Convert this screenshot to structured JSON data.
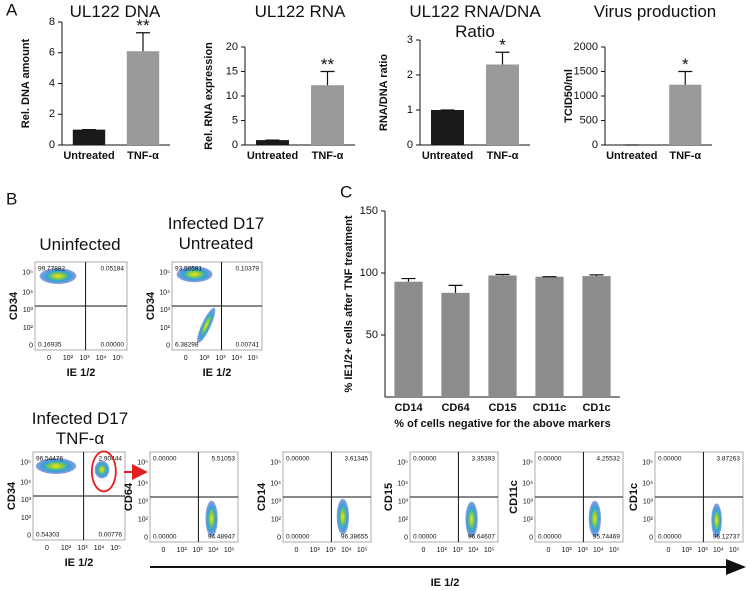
{
  "panel_labels": [
    "A",
    "B",
    "C"
  ],
  "chart_data": [
    {
      "type": "bar",
      "title": "UL122 DNA",
      "y_label": "Rel. DNA amount",
      "categories": [
        "Untreated",
        "TNF-α"
      ],
      "values": [
        1,
        6.1
      ],
      "errors": [
        0,
        1.2
      ],
      "colors": [
        "#1a1a1a",
        "#9a9a9a"
      ],
      "ylim": [
        0,
        8
      ],
      "yticks": [
        0,
        2,
        4,
        6,
        8
      ],
      "significance": [
        null,
        "**"
      ]
    },
    {
      "type": "bar",
      "title": "UL122 RNA",
      "y_label": "Rel. RNA expression",
      "categories": [
        "Untreated",
        "TNF-α"
      ],
      "values": [
        1,
        12.2
      ],
      "errors": [
        0,
        2.8
      ],
      "colors": [
        "#1a1a1a",
        "#9a9a9a"
      ],
      "ylim": [
        0,
        20
      ],
      "yticks": [
        0,
        5,
        10,
        15,
        20
      ],
      "significance": [
        null,
        "**"
      ]
    },
    {
      "type": "bar",
      "title": "UL122 RNA/DNA Ratio",
      "y_label": "RNA/DNA ratio",
      "categories": [
        "Untreated",
        "TNF-α"
      ],
      "values": [
        1,
        2.3
      ],
      "errors": [
        0,
        0.35
      ],
      "colors": [
        "#1a1a1a",
        "#9a9a9a"
      ],
      "ylim": [
        0,
        3
      ],
      "yticks": [
        0,
        1,
        2,
        3
      ],
      "significance": [
        null,
        "*"
      ]
    },
    {
      "type": "bar",
      "title": "Virus production",
      "y_label": "TCID50/ml",
      "categories": [
        "Untreated",
        "TNF-α"
      ],
      "values": [
        0,
        1230
      ],
      "errors": [
        0,
        270
      ],
      "colors": [
        "#1a1a1a",
        "#9a9a9a"
      ],
      "ylim": [
        0,
        2000
      ],
      "yticks": [
        0,
        500,
        1000,
        1500,
        2000
      ],
      "significance": [
        null,
        "*"
      ]
    },
    {
      "type": "bar",
      "y_label": "% IE1/2+ cells after TNF treatment",
      "x_label": "% of cells negative for the above markers",
      "categories": [
        "CD14",
        "CD64",
        "CD15",
        "CD11c",
        "CD1c"
      ],
      "values": [
        93,
        84,
        98,
        97,
        97.5
      ],
      "errors": [
        2.5,
        6,
        0.8,
        0,
        1
      ],
      "color": "#8c8c8c",
      "ylim": [
        0,
        150
      ],
      "yticks": [
        50,
        100,
        150
      ]
    }
  ],
  "flow_ticks": [
    "0",
    "10²",
    "10³",
    "10⁴",
    "10⁵"
  ],
  "flow_plots": [
    {
      "title": "Uninfected",
      "y_label": "CD34",
      "x_label": "IE 1/2",
      "quadrants": [
        "99.77882",
        "0.05184",
        "0.16935",
        "0.00000"
      ]
    },
    {
      "title": "Infected D17 Untreated",
      "y_label": "CD34",
      "x_label": "IE 1/2",
      "quadrants": [
        "93.50581",
        "0.10379",
        "6.38298",
        "0.00741"
      ]
    },
    {
      "title": "Infected D17 TNF-α",
      "y_label": "CD34",
      "x_label": "IE 1/2",
      "quadrants": [
        "96.54476",
        "2.90444",
        "0.54303",
        "0.00776"
      ]
    },
    {
      "y_label": "CD64",
      "quadrants": [
        "0.00000",
        "5.51053",
        "0.00000",
        "94.48947"
      ]
    },
    {
      "y_label": "CD14",
      "quadrants": [
        "0.00000",
        "3.61345",
        "0.00000",
        "96.38655"
      ]
    },
    {
      "y_label": "CD15",
      "quadrants": [
        "0.00000",
        "3.35393",
        "0.00000",
        "96.64607"
      ]
    },
    {
      "y_label": "CD11c",
      "quadrants": [
        "0.00000",
        "4.25532",
        "0.00000",
        "95.74469"
      ]
    },
    {
      "y_label": "CD1c",
      "quadrants": [
        "0.00000",
        "3.87263",
        "0.00000",
        "96.12737"
      ]
    }
  ],
  "shared_x_label": "IE 1/2"
}
